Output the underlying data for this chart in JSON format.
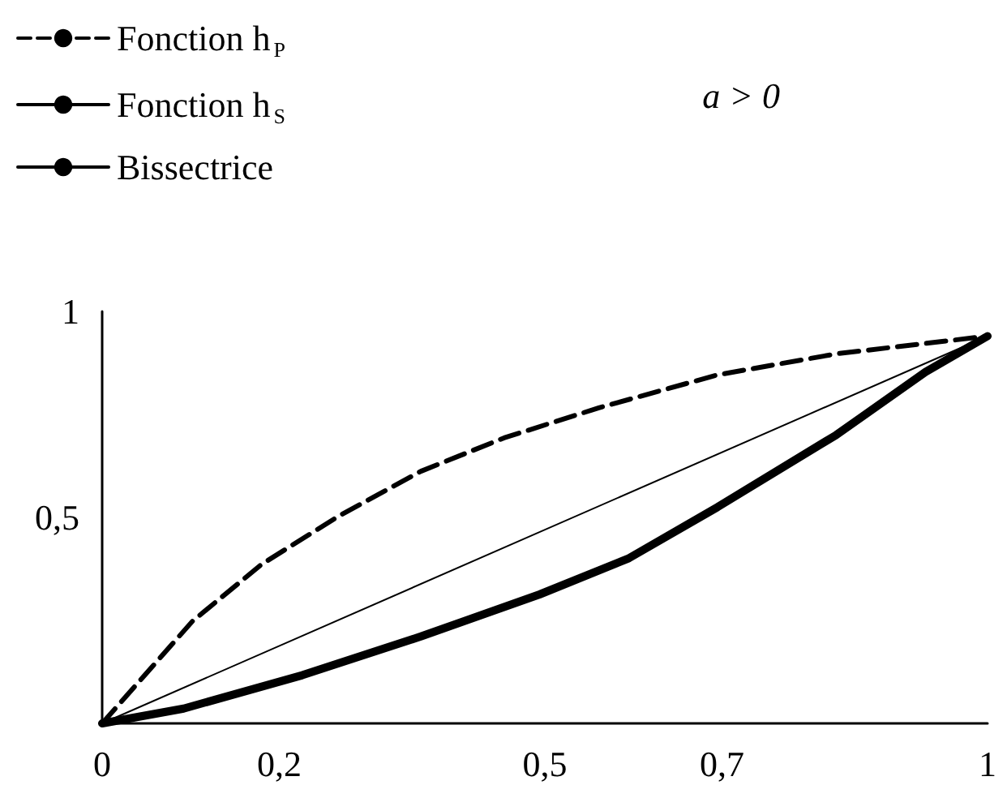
{
  "chart_data": {
    "type": "line",
    "marker": "none",
    "legend": "top left",
    "grid": false,
    "annotations": [
      "a > 0"
    ],
    "xlim": [
      0,
      1
    ],
    "ylim": [
      0,
      1
    ],
    "xticks": [
      0,
      {
        "value": 0.2,
        "label": "0,2"
      },
      {
        "value": 0.5,
        "label": "0,5"
      },
      {
        "value": 0.7,
        "label": "0,7"
      },
      1
    ],
    "yticks": [
      {
        "value": 0.5,
        "label": "0,5"
      },
      1
    ],
    "series": [
      {
        "name": "Fonction h$_{P}$",
        "color": "#000000",
        "line_style": "dashed",
        "x": [
          0,
          0.102,
          0.18,
          0.267,
          0.36,
          0.454,
          0.561,
          0.695,
          0.829,
          1
        ],
        "values": [
          0,
          0.248,
          0.386,
          0.503,
          0.612,
          0.693,
          0.766,
          0.846,
          0.897,
          0.94
        ]
      },
      {
        "name": "Fonction h$_{S}$",
        "color": "#000000",
        "line_style": "solid",
        "x": [
          0,
          0.092,
          0.226,
          0.36,
          0.494,
          0.595,
          0.695,
          0.829,
          0.93,
          1
        ],
        "values": [
          0,
          0.036,
          0.117,
          0.211,
          0.313,
          0.401,
          0.525,
          0.7,
          0.853,
          0.94
        ]
      },
      {
        "name": "Bissectrice",
        "color": "#000000",
        "line_style": "solid",
        "x": [
          0,
          1
        ],
        "values": [
          0,
          0.94
        ]
      }
    ]
  }
}
